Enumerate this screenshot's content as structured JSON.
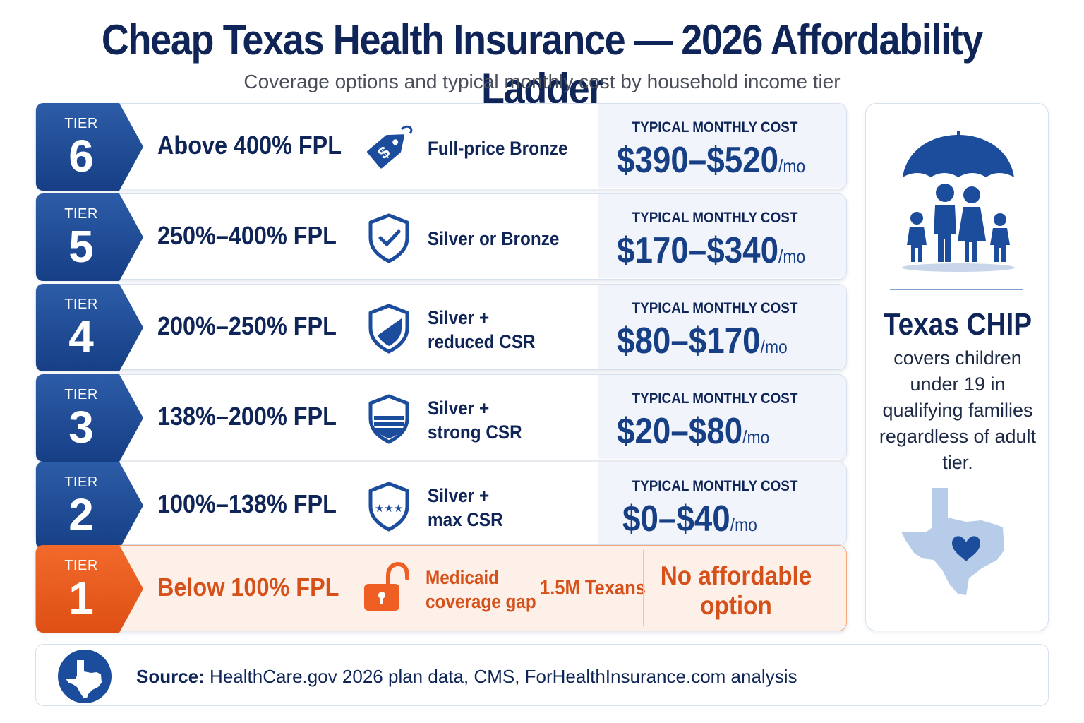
{
  "title": "Cheap Texas Health Insurance — 2026 Affordability Ladder",
  "subtitle": "Coverage options and typical monthly cost by household income tier",
  "tiers": [
    {
      "tier_label": "TIER",
      "number": "6",
      "fpl": "Above 400% FPL",
      "plan_lines": [
        "Full-price Bronze"
      ],
      "icon": "price-tag-icon",
      "cost_label": "TYPICAL MONTHLY COST",
      "cost": "$390–$520",
      "unit": "/mo"
    },
    {
      "tier_label": "TIER",
      "number": "5",
      "fpl": "250%–400% FPL",
      "plan_lines": [
        "Silver or Bronze"
      ],
      "icon": "shield-check-icon",
      "cost_label": "TYPICAL MONTHLY COST",
      "cost": "$170–$340",
      "unit": "/mo"
    },
    {
      "tier_label": "TIER",
      "number": "4",
      "fpl": "200%–250% FPL",
      "plan_lines": [
        "Silver +",
        "reduced CSR"
      ],
      "icon": "shield-partial-icon",
      "cost_label": "TYPICAL MONTHLY COST",
      "cost": "$80–$170",
      "unit": "/mo"
    },
    {
      "tier_label": "TIER",
      "number": "3",
      "fpl": "138%–200% FPL",
      "plan_lines": [
        "Silver +",
        "strong CSR"
      ],
      "icon": "shield-striped-icon",
      "cost_label": "TYPICAL MONTHLY COST",
      "cost": "$20–$80",
      "unit": "/mo"
    },
    {
      "tier_label": "TIER",
      "number": "2",
      "fpl": "100%–138% FPL",
      "plan_lines": [
        "Silver +",
        "max CSR"
      ],
      "icon": "shield-stars-icon",
      "cost_label": "TYPICAL MONTHLY COST",
      "cost": "$0–$40",
      "unit": "/mo"
    }
  ],
  "gap_tier": {
    "tier_label": "TIER",
    "number": "1",
    "fpl": "Below 100% FPL",
    "icon": "open-padlock-icon",
    "plan_lines": [
      "Medicaid",
      "coverage gap"
    ],
    "count": "1.5M Texans",
    "no_option_lines": [
      "No affordable",
      "option"
    ]
  },
  "chip": {
    "icon": "family-umbrella-icon",
    "title": "Texas CHIP",
    "text": "covers children under 19 in qualifying families regardless of adult tier.",
    "map_icon": "texas-heart-map-icon"
  },
  "source": {
    "label": "Source:",
    "text": "HealthCare.gov 2026 plan data, CMS, ForHealthInsurance.com analysis"
  },
  "colors": {
    "navy": "#0f2557",
    "blue": "#163f85",
    "orange": "#d6501a",
    "light_blue": "#b7cce8"
  }
}
